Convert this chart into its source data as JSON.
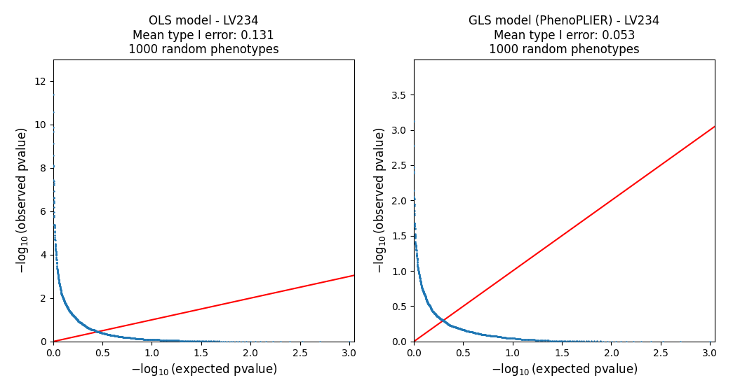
{
  "left_title": "OLS model - LV234\nMean type I error: 0.131\n1000 random phenotypes",
  "right_title": "GLS model (PhenoPLIER) - LV234\nMean type I error: 0.053\n1000 random phenotypes",
  "xlabel": "$-\\log_{10}$(expected pvalue)",
  "ylabel": "$-\\log_{10}$(observed pvalue)",
  "dot_color": "#1f77b4",
  "line_color": "red",
  "dot_size": 3,
  "left_xlim": [
    0,
    3.05
  ],
  "left_ylim": [
    0,
    13.0
  ],
  "right_xlim": [
    0,
    3.05
  ],
  "right_ylim": [
    0,
    4.0
  ],
  "n_genes": 1000
}
